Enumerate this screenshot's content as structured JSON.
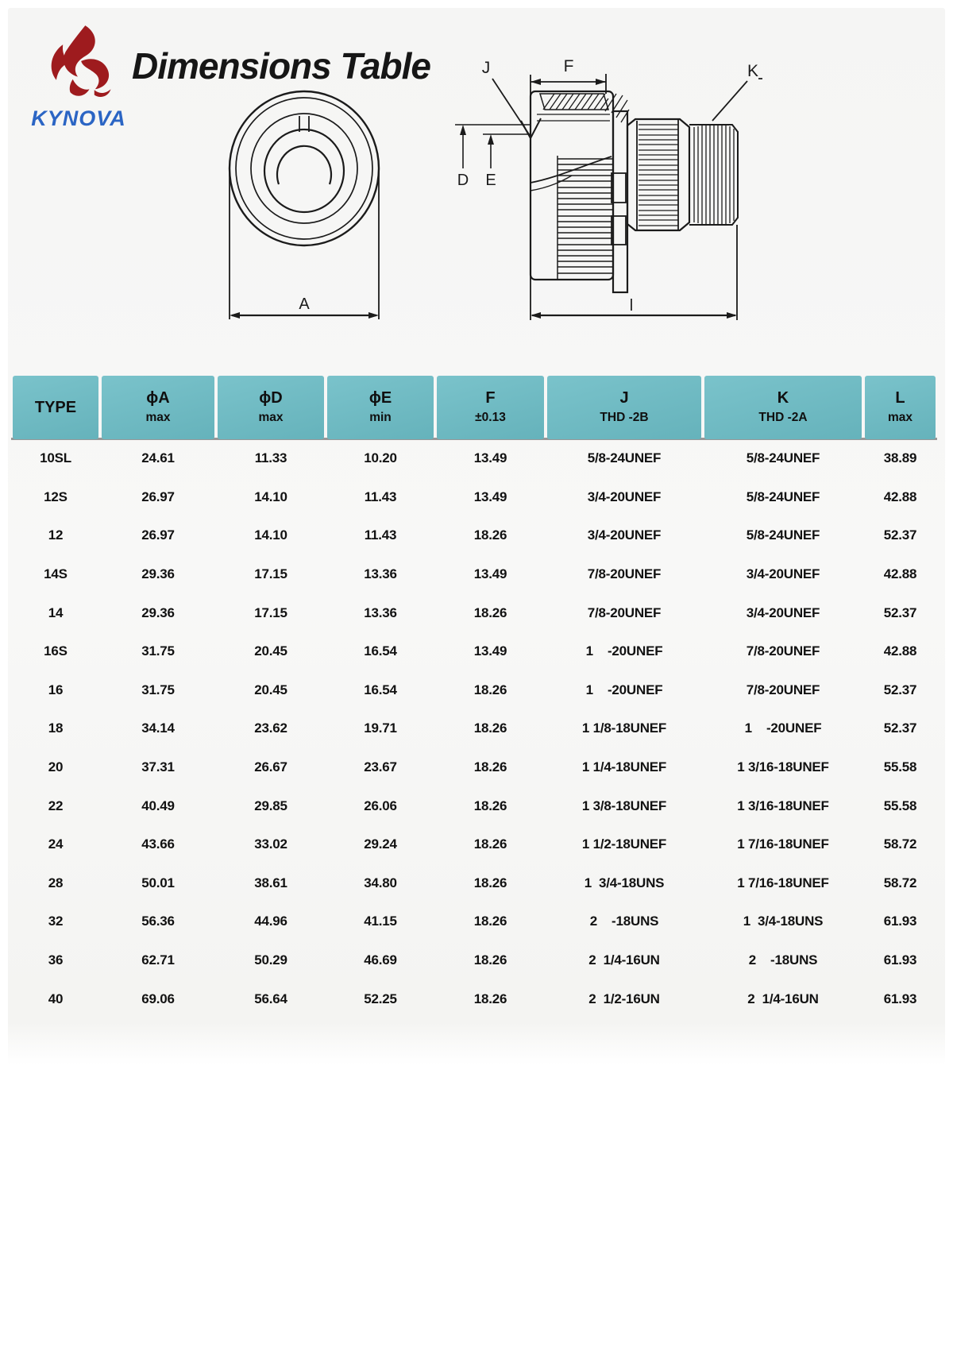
{
  "brand": {
    "name": "KYNOVA",
    "logo_color": "#9e1b1e",
    "name_color": "#2b65c4"
  },
  "header": {
    "title": "Dimensions Table"
  },
  "drawing": {
    "front": {
      "dim_label": "A"
    },
    "side": {
      "labels": {
        "j": "J",
        "f": "F",
        "k": "K",
        "d": "D",
        "e": "E",
        "l": "l"
      }
    }
  },
  "table": {
    "header_bg": "#6bbcc5",
    "columns": [
      {
        "id": "type",
        "line1": "TYPE",
        "line2": ""
      },
      {
        "id": "phiA",
        "line1": "ϕA",
        "line2": "max"
      },
      {
        "id": "phiD",
        "line1": "ϕD",
        "line2": "max"
      },
      {
        "id": "phiE",
        "line1": "ϕE",
        "line2": "min"
      },
      {
        "id": "f",
        "line1": "F",
        "line2": "±0.13"
      },
      {
        "id": "j",
        "line1": "J",
        "line2": "THD -2B"
      },
      {
        "id": "k",
        "line1": "K",
        "line2": "THD -2A"
      },
      {
        "id": "l",
        "line1": "L",
        "line2": "max"
      }
    ],
    "rows": [
      [
        "10SL",
        "24.61",
        "11.33",
        "10.20",
        "13.49",
        "5/8-24UNEF",
        "5/8-24UNEF",
        "38.89"
      ],
      [
        "12S",
        "26.97",
        "14.10",
        "11.43",
        "13.49",
        "3/4-20UNEF",
        "5/8-24UNEF",
        "42.88"
      ],
      [
        "12",
        "26.97",
        "14.10",
        "11.43",
        "18.26",
        "3/4-20UNEF",
        "5/8-24UNEF",
        "52.37"
      ],
      [
        "14S",
        "29.36",
        "17.15",
        "13.36",
        "13.49",
        "7/8-20UNEF",
        "3/4-20UNEF",
        "42.88"
      ],
      [
        "14",
        "29.36",
        "17.15",
        "13.36",
        "18.26",
        "7/8-20UNEF",
        "3/4-20UNEF",
        "52.37"
      ],
      [
        "16S",
        "31.75",
        "20.45",
        "16.54",
        "13.49",
        "1    -20UNEF",
        "7/8-20UNEF",
        "42.88"
      ],
      [
        "16",
        "31.75",
        "20.45",
        "16.54",
        "18.26",
        "1    -20UNEF",
        "7/8-20UNEF",
        "52.37"
      ],
      [
        "18",
        "34.14",
        "23.62",
        "19.71",
        "18.26",
        "1 1/8-18UNEF",
        "1    -20UNEF",
        "52.37"
      ],
      [
        "20",
        "37.31",
        "26.67",
        "23.67",
        "18.26",
        "1 1/4-18UNEF",
        "1 3/16-18UNEF",
        "55.58"
      ],
      [
        "22",
        "40.49",
        "29.85",
        "26.06",
        "18.26",
        "1 3/8-18UNEF",
        "1 3/16-18UNEF",
        "55.58"
      ],
      [
        "24",
        "43.66",
        "33.02",
        "29.24",
        "18.26",
        "1 1/2-18UNEF",
        "1 7/16-18UNEF",
        "58.72"
      ],
      [
        "28",
        "50.01",
        "38.61",
        "34.80",
        "18.26",
        "1  3/4-18UNS",
        "1 7/16-18UNEF",
        "58.72"
      ],
      [
        "32",
        "56.36",
        "44.96",
        "41.15",
        "18.26",
        "2    -18UNS",
        "1  3/4-18UNS",
        "61.93"
      ],
      [
        "36",
        "62.71",
        "50.29",
        "46.69",
        "18.26",
        "2  1/4-16UN",
        "2    -18UNS",
        "61.93"
      ],
      [
        "40",
        "69.06",
        "56.64",
        "52.25",
        "18.26",
        "2  1/2-16UN",
        "2  1/4-16UN",
        "61.93"
      ]
    ]
  }
}
